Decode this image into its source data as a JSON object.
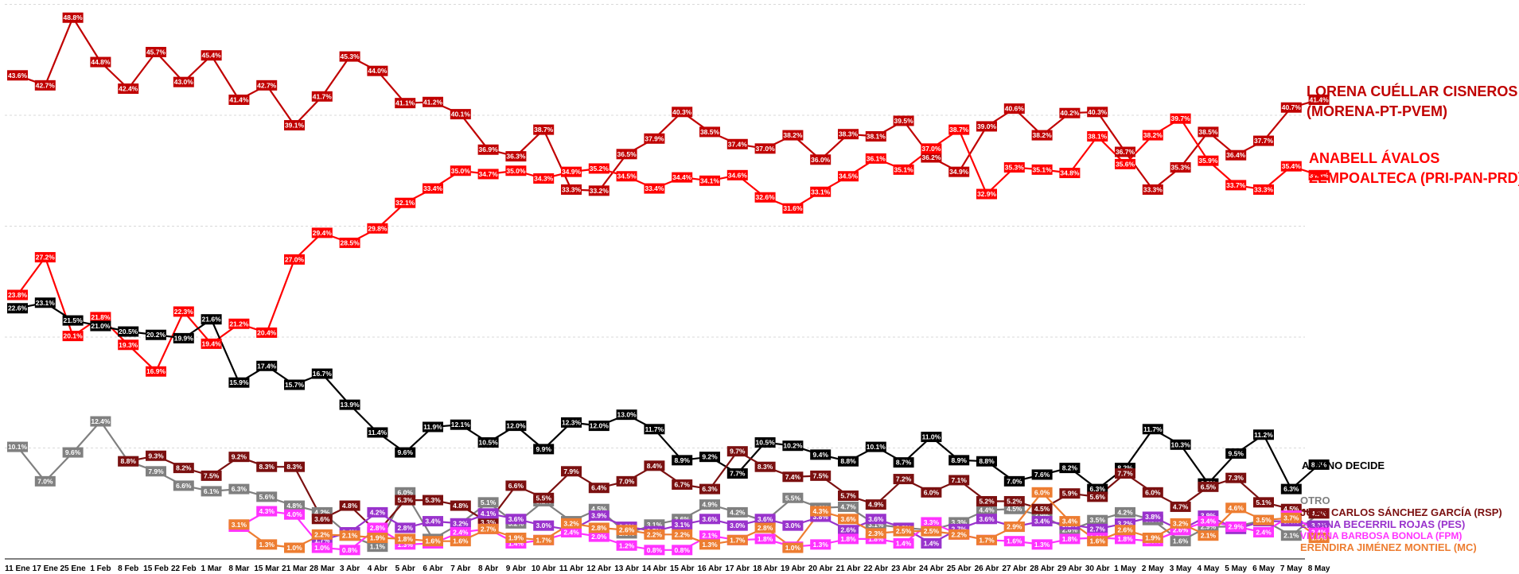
{
  "chart_data": {
    "type": "line",
    "ylim": [
      0,
      50
    ],
    "grid": true,
    "legend": "right",
    "x": [
      "11 Ene",
      "17 Ene",
      "25 Ene",
      "1 Feb",
      "8 Feb",
      "15 Feb",
      "22 Feb",
      "1 Mar",
      "8 Mar",
      "15 Mar",
      "21 Mar",
      "28 Mar",
      "3 Abr",
      "4 Abr",
      "5 Abr",
      "6 Abr",
      "7 Abr",
      "8 Abr",
      "9 Abr",
      "10 Abr",
      "11 Abr",
      "12 Abr",
      "13 Abr",
      "14 Abr",
      "15 Abr",
      "16 Abr",
      "17 Abr",
      "18 Abr",
      "19 Abr",
      "20 Abr",
      "21 Abr",
      "22 Abr",
      "23 Abr",
      "24 Abr",
      "25 Abr",
      "26 Abr",
      "27 Abr",
      "28 Abr",
      "29 Abr",
      "30 Abr",
      "1 May",
      "2 May",
      "3 May",
      "4 May",
      "5 May",
      "6 May",
      "7 May",
      "8 May"
    ],
    "series": [
      {
        "name": "LORENA CUÉLLAR CISNEROS (MORENA-PT-PVEM)",
        "color": "#C00000",
        "values": [
          43.6,
          42.7,
          48.8,
          44.8,
          42.4,
          45.7,
          43.0,
          45.4,
          41.4,
          42.7,
          39.1,
          41.7,
          45.3,
          44.0,
          41.1,
          41.2,
          40.1,
          36.9,
          36.3,
          38.7,
          33.3,
          33.2,
          36.5,
          37.9,
          40.3,
          38.5,
          37.4,
          37.0,
          38.2,
          36.0,
          38.3,
          38.1,
          39.5,
          36.2,
          34.9,
          39.0,
          40.6,
          38.2,
          40.2,
          40.3,
          36.7,
          33.3,
          35.3,
          38.5,
          36.4,
          37.7,
          40.7,
          41.4
        ]
      },
      {
        "name": "ANABELL ÁVALOS ZEMPOALTECA (PRI-PAN-PRD)",
        "color": "#FF0000",
        "values": [
          23.8,
          27.2,
          20.1,
          21.8,
          19.3,
          16.9,
          22.3,
          19.4,
          21.2,
          20.4,
          27.0,
          29.4,
          28.5,
          29.8,
          32.1,
          33.4,
          35.0,
          34.7,
          35.0,
          34.3,
          34.9,
          35.2,
          34.5,
          33.4,
          34.4,
          34.1,
          34.6,
          32.6,
          31.6,
          33.1,
          34.5,
          36.1,
          35.1,
          37.0,
          38.7,
          32.9,
          35.3,
          35.1,
          34.8,
          38.1,
          35.6,
          38.2,
          39.7,
          35.9,
          33.7,
          33.3,
          35.4,
          34.6
        ]
      },
      {
        "name": "AÚN NO DECIDE",
        "color": "#000000",
        "values": [
          22.6,
          23.1,
          21.5,
          21.0,
          20.5,
          20.2,
          19.9,
          21.6,
          15.9,
          17.4,
          15.7,
          16.7,
          13.9,
          11.4,
          9.6,
          11.9,
          12.1,
          10.5,
          12.0,
          9.9,
          12.3,
          12.0,
          13.0,
          11.7,
          8.9,
          9.2,
          7.7,
          10.5,
          10.2,
          9.4,
          8.8,
          10.1,
          8.7,
          11.0,
          8.9,
          8.8,
          7.0,
          7.6,
          8.2,
          6.3,
          8.2,
          11.7,
          10.3,
          6.8,
          9.5,
          11.2,
          6.3,
          8.5
        ]
      },
      {
        "name": "OTRO",
        "color": "#808080",
        "values": [
          10.1,
          7.0,
          9.6,
          12.4,
          8.8,
          7.9,
          6.6,
          6.1,
          6.3,
          5.6,
          4.8,
          4.2,
          2.1,
          1.1,
          6.0,
          1.8,
          3.2,
          5.1,
          3.2,
          5.2,
          3.4,
          4.5,
          2.3,
          3.1,
          3.6,
          4.9,
          4.2,
          3.4,
          5.5,
          4.6,
          4.7,
          3.1,
          2.8,
          2.6,
          3.3,
          4.4,
          4.5,
          3.9,
          2.6,
          3.5,
          4.2,
          3.5,
          1.6,
          2.9,
          2.9,
          3.5,
          2.1,
          4.1
        ]
      },
      {
        "name": "JUAN CARLOS SÁNCHEZ GARCÍA (RSP)",
        "color": "#7B1010",
        "values": [
          null,
          null,
          null,
          null,
          8.8,
          9.3,
          8.2,
          7.5,
          9.2,
          8.3,
          8.3,
          3.6,
          4.8,
          2.4,
          5.3,
          5.3,
          4.8,
          3.3,
          6.6,
          5.5,
          7.9,
          6.4,
          7.0,
          8.4,
          6.7,
          6.3,
          9.7,
          8.3,
          7.4,
          7.5,
          5.7,
          4.9,
          7.2,
          6.0,
          7.1,
          5.2,
          5.2,
          4.5,
          5.9,
          5.6,
          7.7,
          6.0,
          4.7,
          6.5,
          7.3,
          5.1,
          4.5,
          4.1
        ]
      },
      {
        "name": "LILIANA BECERRIL ROJAS (PES)",
        "color": "#9933CC",
        "values": [
          null,
          null,
          null,
          null,
          null,
          null,
          null,
          null,
          null,
          null,
          null,
          1.7,
          2.4,
          4.2,
          2.8,
          3.4,
          3.2,
          4.1,
          3.6,
          3.0,
          2.6,
          3.9,
          2.9,
          2.5,
          3.1,
          3.6,
          3.0,
          3.6,
          3.0,
          3.8,
          2.6,
          3.6,
          2.8,
          1.4,
          2.7,
          3.6,
          2.9,
          3.4,
          3.1,
          2.7,
          3.2,
          3.8,
          2.6,
          3.9,
          2.7,
          3.4,
          3.4,
          3.0
        ]
      },
      {
        "name": "VIVIANA BARBOSA BONOLA (FPM)",
        "color": "#FF33FF",
        "values": [
          null,
          null,
          null,
          null,
          null,
          null,
          null,
          null,
          2.9,
          4.3,
          4.0,
          1.0,
          0.8,
          2.8,
          1.3,
          1.4,
          2.4,
          2.7,
          1.4,
          1.7,
          2.4,
          2.0,
          1.2,
          0.8,
          0.8,
          2.1,
          1.7,
          1.8,
          1.1,
          1.3,
          1.8,
          1.8,
          1.4,
          3.3,
          2.2,
          1.7,
          1.6,
          1.3,
          1.8,
          1.9,
          1.8,
          1.6,
          2.6,
          3.4,
          2.9,
          2.4,
          3.9,
          2.4
        ]
      },
      {
        "name": "ERÉNDIRA JIMÉNEZ MONTIEL (MC)",
        "color": "#ED7D31",
        "values": [
          null,
          null,
          null,
          null,
          null,
          null,
          null,
          null,
          3.1,
          1.3,
          1.0,
          2.2,
          2.1,
          1.9,
          1.8,
          1.6,
          1.6,
          2.7,
          1.9,
          1.7,
          3.2,
          2.8,
          2.6,
          2.2,
          2.2,
          1.3,
          1.7,
          2.8,
          1.0,
          4.3,
          3.6,
          2.3,
          2.5,
          2.5,
          2.2,
          1.7,
          2.9,
          6.0,
          3.4,
          1.6,
          2.6,
          1.9,
          3.2,
          2.1,
          4.6,
          3.5,
          3.7,
          1.9
        ]
      }
    ]
  }
}
